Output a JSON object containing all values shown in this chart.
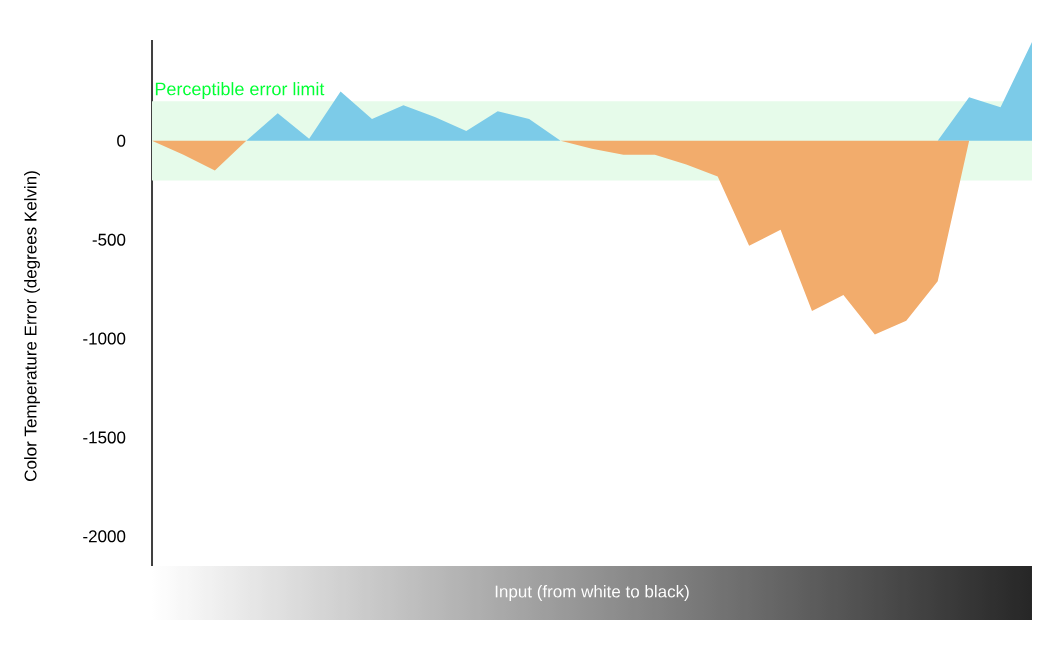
{
  "chart_data": {
    "type": "area",
    "xlabel": "Input (from white to black)",
    "ylabel": "Color Temperature Error (degrees Kelvin)",
    "categories": [
      null,
      null,
      null,
      null,
      null,
      null,
      null,
      null,
      null,
      null,
      null,
      null,
      null,
      null,
      null,
      null,
      null,
      null,
      null,
      null,
      null,
      null,
      null,
      null,
      null,
      null,
      null,
      null,
      null
    ],
    "series": [
      {
        "color": "#7ccbe8",
        "values": [
          0,
          0,
          0,
          0,
          140,
          10,
          250,
          110,
          180,
          120,
          50,
          150,
          110,
          0,
          0,
          0,
          0,
          0,
          0,
          0,
          0,
          0,
          0,
          0,
          0,
          0,
          220,
          170,
          500
        ]
      },
      {
        "color": "#f2ac6c",
        "values": [
          0,
          -70,
          -150,
          0,
          0,
          0,
          0,
          0,
          0,
          0,
          0,
          0,
          0,
          0,
          -40,
          -70,
          -70,
          -120,
          -180,
          -530,
          -450,
          -860,
          -780,
          -980,
          -910,
          -710,
          0,
          0,
          0
        ]
      }
    ],
    "ylim": [
      -2150,
      510
    ],
    "yticks": [
      0,
      -500,
      -1000,
      -1500,
      -2000
    ],
    "tick_labels": "y",
    "grid": false,
    "bands": [
      {
        "axis": "y",
        "from": -200,
        "to": 200,
        "label": "Perceptible error limit",
        "color": "#e6fbea"
      }
    ]
  }
}
